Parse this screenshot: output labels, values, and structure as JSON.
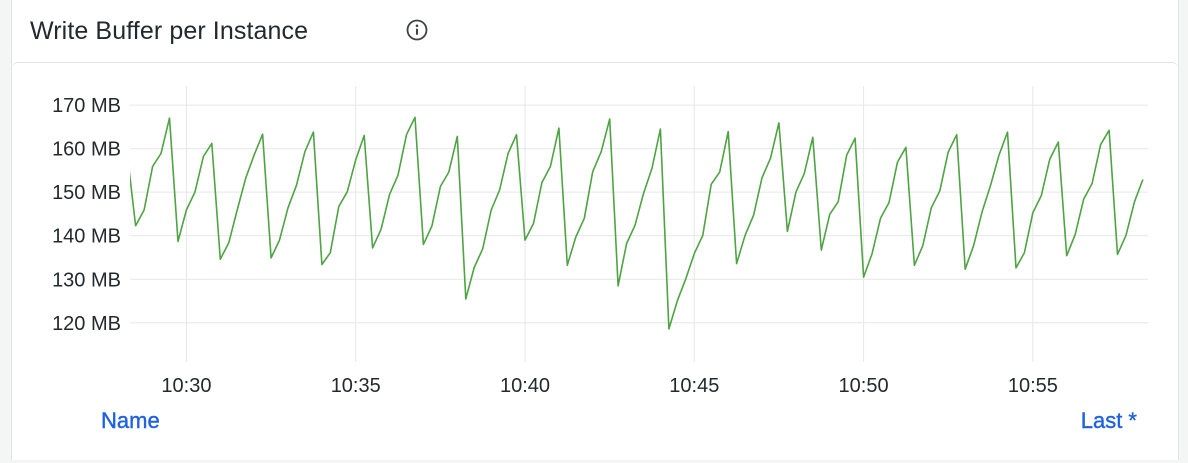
{
  "panel": {
    "title": "Write Buffer per Instance",
    "info_icon": "info-circle-icon"
  },
  "legend": {
    "name_header": "Name",
    "last_header": "Last *"
  },
  "colors": {
    "series": "#4ea342",
    "grid": "#e6e7e8",
    "legend_header": "#1f62e0"
  },
  "chart_data": {
    "type": "line",
    "title": "Write Buffer per Instance",
    "xlabel": "",
    "ylabel": "",
    "grid": true,
    "xlim": [
      "10:28:20",
      "10:58:24"
    ],
    "ylim": [
      111,
      173
    ],
    "y_unit": "MB",
    "y_ticks": [
      120,
      130,
      140,
      150,
      160,
      170
    ],
    "y_tick_labels": [
      "120 MB",
      "130 MB",
      "140 MB",
      "150 MB",
      "160 MB",
      "170 MB"
    ],
    "x_ticks": [
      "10:30",
      "10:35",
      "10:40",
      "10:45",
      "10:50",
      "10:55"
    ],
    "series": [
      {
        "color": "#4ea342",
        "x": [
          "10:28:15",
          "10:28:30",
          "10:28:45",
          "10:29:00",
          "10:29:15",
          "10:29:30",
          "10:29:45",
          "10:30:00",
          "10:30:15",
          "10:30:30",
          "10:30:45",
          "10:31:00",
          "10:31:15",
          "10:31:30",
          "10:31:45",
          "10:32:00",
          "10:32:15",
          "10:32:30",
          "10:32:45",
          "10:33:00",
          "10:33:15",
          "10:33:30",
          "10:33:45",
          "10:34:00",
          "10:34:15",
          "10:34:30",
          "10:34:45",
          "10:35:00",
          "10:35:15",
          "10:35:30",
          "10:35:45",
          "10:36:00",
          "10:36:15",
          "10:36:30",
          "10:36:45",
          "10:37:00",
          "10:37:15",
          "10:37:30",
          "10:37:45",
          "10:38:00",
          "10:38:15",
          "10:38:30",
          "10:38:45",
          "10:39:00",
          "10:39:15",
          "10:39:30",
          "10:39:45",
          "10:40:00",
          "10:40:15",
          "10:40:30",
          "10:40:45",
          "10:41:00",
          "10:41:15",
          "10:41:30",
          "10:41:45",
          "10:42:00",
          "10:42:15",
          "10:42:30",
          "10:42:45",
          "10:43:00",
          "10:43:15",
          "10:43:30",
          "10:43:45",
          "10:44:00",
          "10:44:15",
          "10:44:30",
          "10:44:45",
          "10:45:00",
          "10:45:15",
          "10:45:30",
          "10:45:45",
          "10:46:00",
          "10:46:15",
          "10:46:30",
          "10:46:45",
          "10:47:00",
          "10:47:15",
          "10:47:30",
          "10:47:45",
          "10:48:00",
          "10:48:15",
          "10:48:30",
          "10:48:45",
          "10:49:00",
          "10:49:15",
          "10:49:30",
          "10:49:45",
          "10:50:00",
          "10:50:15",
          "10:50:30",
          "10:50:45",
          "10:51:00",
          "10:51:15",
          "10:51:30",
          "10:51:45",
          "10:52:00",
          "10:52:15",
          "10:52:30",
          "10:52:45",
          "10:53:00",
          "10:53:15",
          "10:53:30",
          "10:53:45",
          "10:54:00",
          "10:54:15",
          "10:54:30",
          "10:54:45",
          "10:55:00",
          "10:55:15",
          "10:55:30",
          "10:55:45",
          "10:56:00",
          "10:56:15",
          "10:56:30",
          "10:56:45",
          "10:57:00",
          "10:57:15",
          "10:57:30",
          "10:57:45",
          "10:58:00",
          "10:58:15"
        ],
        "values": [
          158.9,
          142.3,
          145.9,
          155.9,
          158.9,
          167.0,
          138.7,
          145.9,
          150.0,
          158.2,
          161.2,
          134.6,
          138.4,
          145.9,
          153.2,
          158.5,
          163.3,
          134.9,
          139.0,
          146.4,
          151.6,
          159.3,
          163.8,
          133.4,
          136.1,
          146.7,
          150.1,
          157.4,
          163.0,
          137.2,
          141.5,
          149.5,
          153.9,
          163.2,
          167.2,
          138.0,
          142.2,
          151.3,
          154.6,
          162.8,
          125.5,
          132.7,
          137.0,
          145.9,
          150.5,
          158.9,
          163.2,
          139.0,
          142.8,
          152.2,
          155.9,
          164.7,
          133.2,
          139.7,
          144.0,
          154.7,
          159.3,
          166.8,
          128.5,
          138.2,
          142.4,
          149.7,
          155.5,
          164.5,
          118.6,
          125.1,
          130.1,
          135.9,
          140.1,
          151.8,
          154.6,
          163.9,
          133.6,
          140.1,
          144.7,
          153.3,
          157.8,
          165.9,
          141.0,
          150.0,
          154.3,
          162.6,
          136.7,
          144.9,
          147.8,
          158.5,
          162.4,
          130.5,
          135.9,
          144.0,
          147.6,
          156.9,
          160.3,
          133.2,
          137.7,
          146.4,
          150.3,
          159.2,
          163.2,
          132.3,
          137.7,
          145.5,
          151.6,
          158.5,
          163.8,
          132.6,
          136.1,
          145.3,
          149.2,
          157.6,
          161.5,
          135.4,
          140.3,
          148.4,
          152.0,
          160.9,
          164.2,
          135.7,
          140.1,
          147.8,
          152.9
        ]
      }
    ]
  }
}
